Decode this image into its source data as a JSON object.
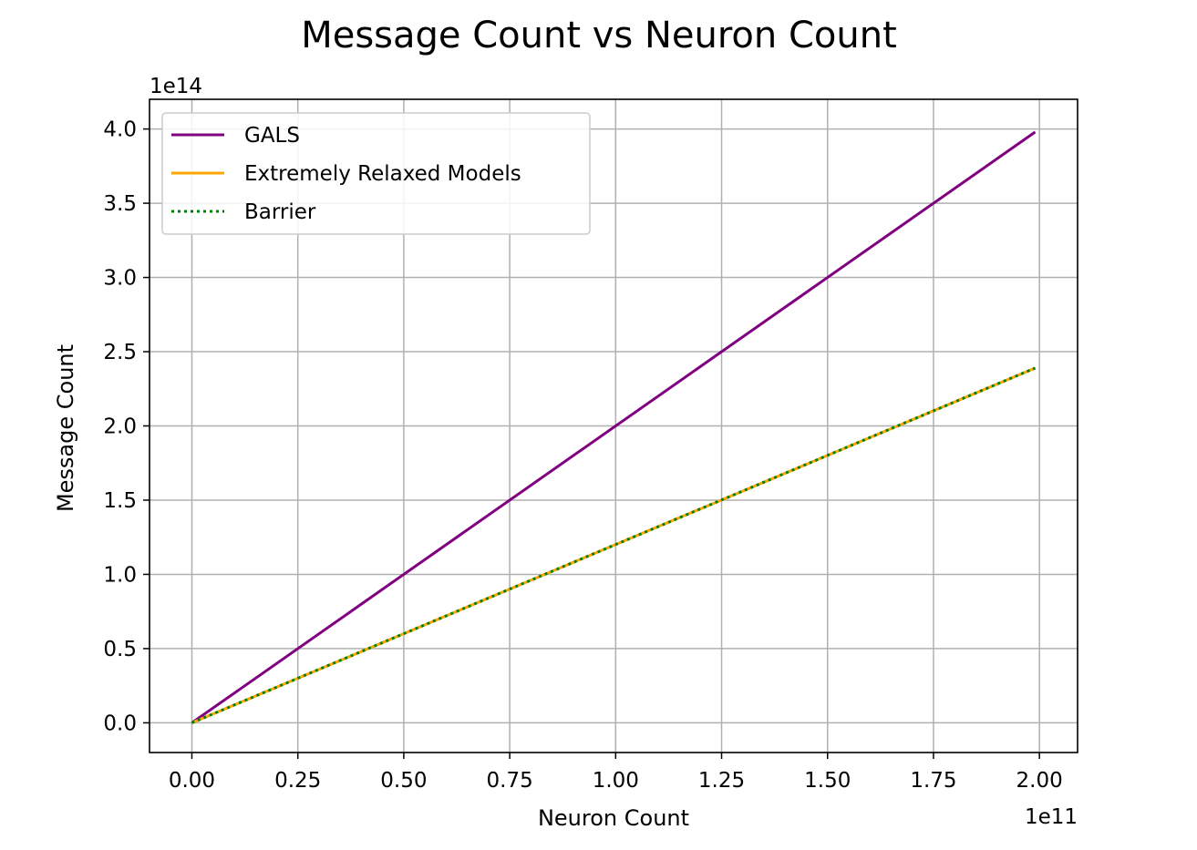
{
  "chart_data": {
    "type": "line",
    "title": "Message Count vs Neuron Count",
    "xlabel": "Neuron Count",
    "ylabel": "Message Count",
    "x_offset_label": "1e11",
    "y_offset_label": "1e14",
    "xlim": [
      -10000000000.0,
      209000000000.0
    ],
    "ylim": [
      -20000000000000.0,
      420000000000000.0
    ],
    "x_ticks": [
      0,
      25000000000.0,
      50000000000.0,
      75000000000.0,
      100000000000.0,
      125000000000.0,
      150000000000.0,
      175000000000.0,
      200000000000.0
    ],
    "x_tick_labels": [
      "0.00",
      "0.25",
      "0.50",
      "0.75",
      "1.00",
      "1.25",
      "1.50",
      "1.75",
      "2.00"
    ],
    "y_ticks": [
      0,
      50000000000000.0,
      100000000000000.0,
      150000000000000.0,
      200000000000000.0,
      250000000000000.0,
      300000000000000.0,
      350000000000000.0,
      400000000000000.0
    ],
    "y_tick_labels": [
      "0.0",
      "0.5",
      "1.0",
      "1.5",
      "2.0",
      "2.5",
      "3.0",
      "3.5",
      "4.0"
    ],
    "grid": true,
    "legend_position": "upper-left",
    "series": [
      {
        "name": "GALS",
        "color": "#800080",
        "style": "solid",
        "x": [
          0,
          199000000000.0
        ],
        "y": [
          0,
          398000000000000.0
        ]
      },
      {
        "name": "Extremely Relaxed Models",
        "color": "#FFA500",
        "style": "solid",
        "x": [
          0,
          199000000000.0
        ],
        "y": [
          0,
          239000000000000.0
        ]
      },
      {
        "name": "Barrier",
        "color": "#008000",
        "style": "dotted",
        "x": [
          0,
          199000000000.0
        ],
        "y": [
          0,
          239000000000000.0
        ]
      }
    ]
  }
}
